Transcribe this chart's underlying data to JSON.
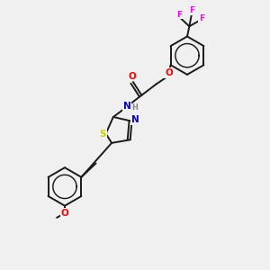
{
  "bg_color": "#f0f0f0",
  "bond_color": "#1a1a1a",
  "bond_width": 1.4,
  "atom_colors": {
    "O": "#ff0000",
    "N": "#0000cc",
    "S": "#cccc00",
    "F": "#ff00ff",
    "C": "#1a1a1a",
    "H": "#888888"
  },
  "font_size": 7.5,
  "figsize": [
    3.0,
    3.0
  ],
  "dpi": 100
}
